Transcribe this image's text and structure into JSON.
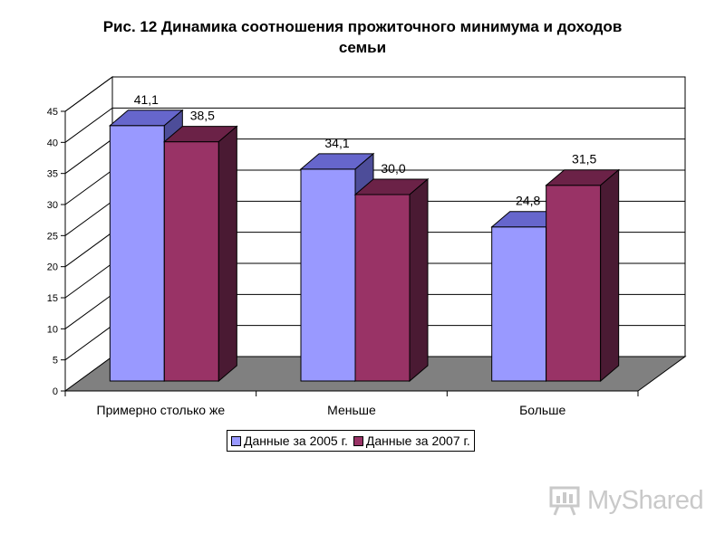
{
  "title_line1": "Рис. 12   Динамика соотношения прожиточного минимума и доходов",
  "title_line2": "семьи",
  "watermark": "MyShared",
  "colors": {
    "series_2005": "#9999ff",
    "series_2007": "#993366",
    "floor": "#808080"
  },
  "chart_data": {
    "type": "bar",
    "style": "3d-clustered",
    "categories": [
      "Примерно столько же",
      "Меньше",
      "Больше"
    ],
    "series": [
      {
        "name": "Данные за 2005 г.",
        "values": [
          41.1,
          34.1,
          24.8
        ],
        "labels": [
          "41,1",
          "34,1",
          "24,8"
        ]
      },
      {
        "name": "Данные за 2007 г.",
        "values": [
          38.5,
          30.0,
          31.5
        ],
        "labels": [
          "38,5",
          "30,0",
          "31,5"
        ]
      }
    ],
    "ylim": [
      0,
      45
    ],
    "yticks": [
      "0",
      "5",
      "10",
      "15",
      "20",
      "25",
      "30",
      "35",
      "40",
      "45"
    ],
    "grid": true,
    "legend": "bottom"
  }
}
